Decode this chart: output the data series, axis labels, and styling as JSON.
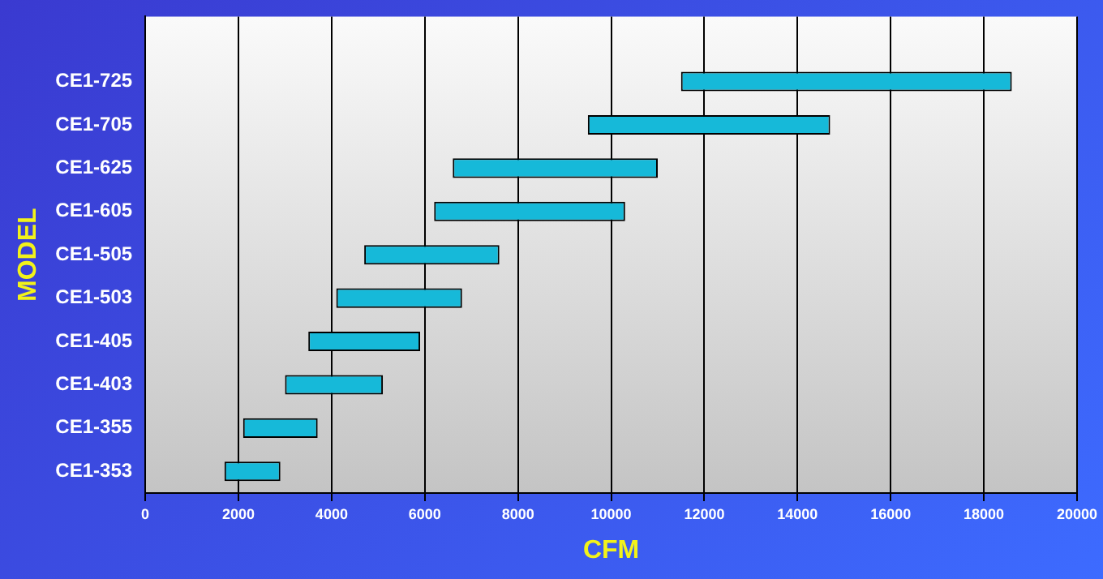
{
  "chart_data": {
    "type": "bar",
    "orientation": "horizontal",
    "xlabel": "CFM",
    "ylabel": "MODEL",
    "categories": [
      null,
      "CE1-725",
      "CE1-705",
      "CE1-625",
      "CE1-605",
      "CE1-505",
      "CE1-503",
      "CE1-405",
      "CE1-403",
      "CE1-355",
      "CE1-353"
    ],
    "base": [
      null,
      11500,
      9500,
      6600,
      6200,
      4700,
      4100,
      3500,
      3000,
      2100,
      1700
    ],
    "values": [
      null,
      7100,
      5200,
      4400,
      4100,
      2900,
      2700,
      2400,
      2100,
      1600,
      1200
    ],
    "color": "#16b9d9",
    "xlim": [
      0,
      20000
    ],
    "xticks": [
      0,
      2000,
      4000,
      6000,
      8000,
      10000,
      12000,
      14000,
      16000,
      18000,
      20000
    ],
    "grid": "x",
    "legend": false
  }
}
